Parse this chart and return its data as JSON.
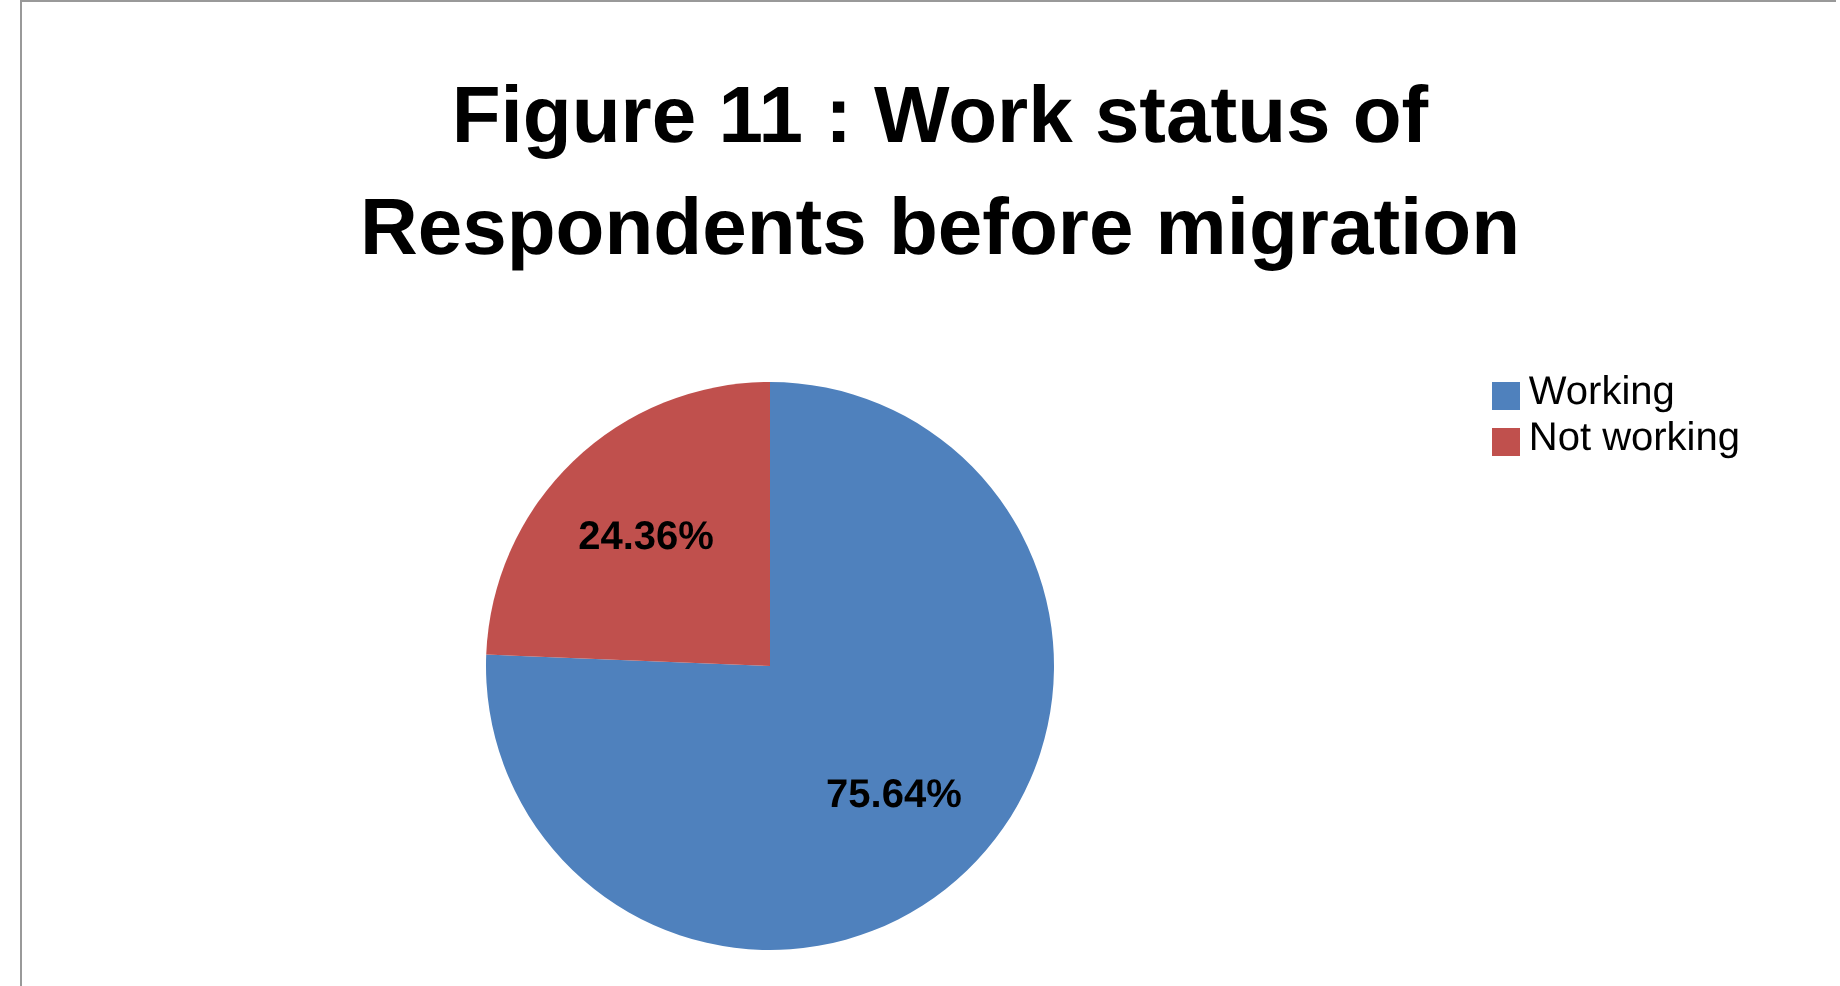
{
  "chart_data": {
    "type": "pie",
    "title": "Figure 11 : Work status of Respondents before migration",
    "categories": [
      "Working",
      "Not working"
    ],
    "values": [
      75.64,
      24.36
    ],
    "value_labels": [
      "75.64%",
      "24.36%"
    ],
    "colors": [
      "#4f81bd",
      "#c0504d"
    ],
    "legend": "right"
  }
}
